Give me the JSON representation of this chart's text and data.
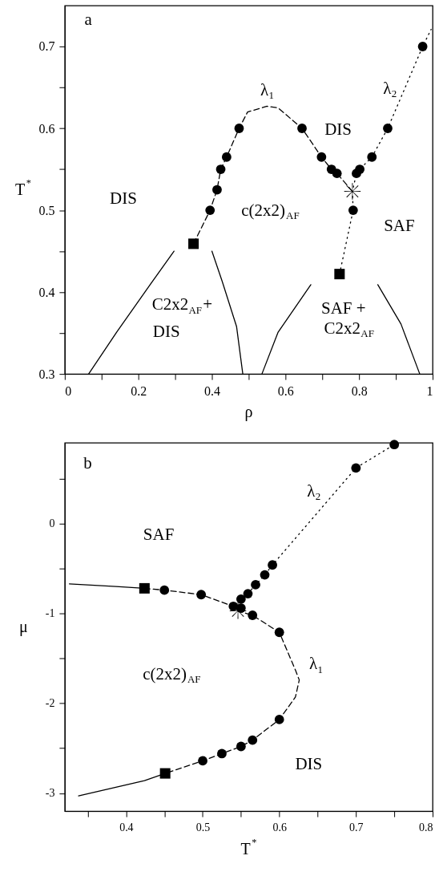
{
  "chart_data": [
    {
      "type": "line",
      "xlabel": "ρ",
      "ylabel": "T$^{*}$",
      "xlim": [
        0,
        1
      ],
      "ylim": [
        0.3,
        0.75
      ],
      "grid": false,
      "xticks": [
        0,
        {
          "value": 0.1,
          "label": null
        },
        0.2,
        {
          "value": 0.3,
          "label": null
        },
        0.4,
        {
          "value": 0.5,
          "label": null
        },
        0.6,
        {
          "value": 0.7,
          "label": null
        },
        0.8,
        {
          "value": 0.9,
          "label": null
        },
        1
      ],
      "yticks": [
        0.3,
        {
          "value": 0.35,
          "label": null
        },
        0.4,
        {
          "value": 0.45,
          "label": null
        },
        0.5,
        {
          "value": 0.55,
          "label": null
        },
        0.6,
        {
          "value": 0.65,
          "label": null
        },
        0.7
      ],
      "series": [
        {
          "type": "line",
          "line_style": "dashed",
          "marker": "none",
          "color": "#000000",
          "x": [
            0.35,
            0.395,
            0.414,
            0.424,
            0.44,
            0.474,
            0.497,
            0.55,
            0.58,
            0.645,
            0.698,
            0.725,
            0.74,
            0.782
          ],
          "values": [
            0.459,
            0.5,
            0.525,
            0.55,
            0.565,
            0.6,
            0.62,
            0.627,
            0.625,
            0.6,
            0.565,
            0.55,
            0.545,
            0.523
          ]
        },
        {
          "type": "line",
          "line_style": "dotted",
          "marker": "none",
          "color": "#000000",
          "x": [
            0.747,
            0.784,
            0.782,
            0.793,
            0.802,
            0.835,
            0.878,
            0.973,
            0.996
          ],
          "values": [
            0.422,
            0.5,
            0.523,
            0.545,
            0.55,
            0.565,
            0.6,
            0.7,
            0.721
          ]
        },
        {
          "type": "line",
          "line_style": "solid",
          "marker": "none",
          "color": "#000000",
          "x": [
            0.065,
            0.141,
            0.232,
            0.297
          ],
          "values": [
            0.3,
            0.351,
            0.409,
            0.45
          ]
        },
        {
          "type": "line",
          "line_style": "solid",
          "marker": "none",
          "color": "#000000",
          "x": [
            0.4,
            0.428,
            0.467,
            0.484
          ],
          "values": [
            0.45,
            0.413,
            0.358,
            0.3
          ]
        },
        {
          "type": "line",
          "line_style": "solid",
          "marker": "none",
          "color": "#000000",
          "x": [
            0.536,
            0.58,
            0.669
          ],
          "values": [
            0.3,
            0.351,
            0.409
          ]
        },
        {
          "type": "line",
          "line_style": "solid",
          "marker": "none",
          "color": "#000000",
          "x": [
            0.851,
            0.914,
            0.965
          ],
          "values": [
            0.409,
            0.361,
            0.3
          ]
        },
        {
          "type": "scatter",
          "marker": "circle",
          "color": "#000000",
          "x": [
            0.395,
            0.414,
            0.424,
            0.44,
            0.474,
            0.645,
            0.698,
            0.725,
            0.74,
            0.784,
            0.793,
            0.802,
            0.835,
            0.878,
            0.973
          ],
          "values": [
            0.5,
            0.525,
            0.55,
            0.565,
            0.6,
            0.6,
            0.565,
            0.55,
            0.545,
            0.5,
            0.545,
            0.55,
            0.565,
            0.6,
            0.7
          ]
        },
        {
          "type": "scatter",
          "marker": "square",
          "color": "#000000",
          "x": [
            0.35,
            0.747
          ],
          "values": [
            0.459,
            0.422
          ]
        },
        {
          "type": "scatter",
          "marker": "cross",
          "color": "#000000",
          "x": [
            0.782
          ],
          "values": [
            0.523
          ]
        }
      ],
      "annotations": [
        "a",
        "λ$_{1}$",
        "λ$_{2}$",
        "DIS",
        "DIS",
        "c(2x2)$_{AF}$",
        "SAF",
        "C2x2$_{AF}$+",
        "DIS",
        "SAF  +",
        "C2x2$_{AF}$"
      ]
    },
    {
      "type": "line",
      "xlabel": "T$^{*}$",
      "ylabel": "μ",
      "xlim": [
        0.32,
        0.8
      ],
      "ylim": [
        -3.2,
        0.9
      ],
      "grid": false,
      "xticks": [
        {
          "value": 0.35,
          "label": null
        },
        0.4,
        {
          "value": 0.45,
          "label": null
        },
        0.5,
        {
          "value": 0.55,
          "label": null
        },
        0.6,
        {
          "value": 0.65,
          "label": null
        },
        0.7,
        {
          "value": 0.75,
          "label": null
        },
        0.8
      ],
      "yticks": [
        -3,
        {
          "value": -2.5,
          "label": null
        },
        -2,
        {
          "value": -1.5,
          "label": null
        },
        -1,
        {
          "value": -0.5,
          "label": null
        },
        0,
        {
          "value": 0.5,
          "label": null
        }
      ],
      "series": [
        {
          "type": "line",
          "line_style": "dashed",
          "marker": "none",
          "color": "#000000",
          "x": [
            0.424,
            0.45,
            0.498,
            0.54,
            0.546,
            0.565,
            0.6,
            0.621,
            0.626,
            0.621,
            0.6,
            0.565,
            0.55,
            0.525,
            0.5,
            0.451
          ],
          "values": [
            -0.72,
            -0.74,
            -0.79,
            -0.92,
            -0.97,
            -1.02,
            -1.21,
            -1.63,
            -1.74,
            -1.93,
            -2.18,
            -2.41,
            -2.48,
            -2.56,
            -2.64,
            -2.78
          ]
        },
        {
          "type": "line",
          "line_style": "dotted",
          "marker": "none",
          "color": "#000000",
          "x": [
            0.546,
            0.55,
            0.559,
            0.569,
            0.581,
            0.591,
            0.7,
            0.75
          ],
          "values": [
            -0.97,
            -0.84,
            -0.78,
            -0.68,
            -0.57,
            -0.46,
            0.62,
            0.88
          ]
        },
        {
          "type": "line",
          "line_style": "solid",
          "marker": "none",
          "color": "#000000",
          "x": [
            0.326,
            0.387,
            0.424
          ],
          "values": [
            -0.67,
            -0.7,
            -0.72
          ]
        },
        {
          "type": "line",
          "line_style": "solid",
          "marker": "none",
          "color": "#000000",
          "x": [
            0.338,
            0.424,
            0.451
          ],
          "values": [
            -3.03,
            -2.86,
            -2.78
          ]
        },
        {
          "type": "scatter",
          "marker": "circle",
          "color": "#000000",
          "x": [
            0.45,
            0.498,
            0.54,
            0.55,
            0.565,
            0.6,
            0.6,
            0.565,
            0.55,
            0.525,
            0.5,
            0.55,
            0.559,
            0.569,
            0.581,
            0.591,
            0.7,
            0.75
          ],
          "values": [
            -0.74,
            -0.79,
            -0.92,
            -0.94,
            -1.02,
            -1.21,
            -2.18,
            -2.41,
            -2.48,
            -2.56,
            -2.64,
            -0.84,
            -0.78,
            -0.68,
            -0.57,
            -0.46,
            0.62,
            0.88
          ]
        },
        {
          "type": "scatter",
          "marker": "square",
          "color": "#000000",
          "x": [
            0.424,
            0.451
          ],
          "values": [
            -0.72,
            -2.78
          ]
        },
        {
          "type": "scatter",
          "marker": "cross",
          "color": "#000000",
          "x": [
            0.546
          ],
          "values": [
            -0.97
          ]
        }
      ],
      "annotations": [
        "b",
        "λ$_{2}$",
        "SAF",
        "λ$_{1}$",
        "c(2x2)$_{AF}$",
        "DIS"
      ]
    }
  ]
}
